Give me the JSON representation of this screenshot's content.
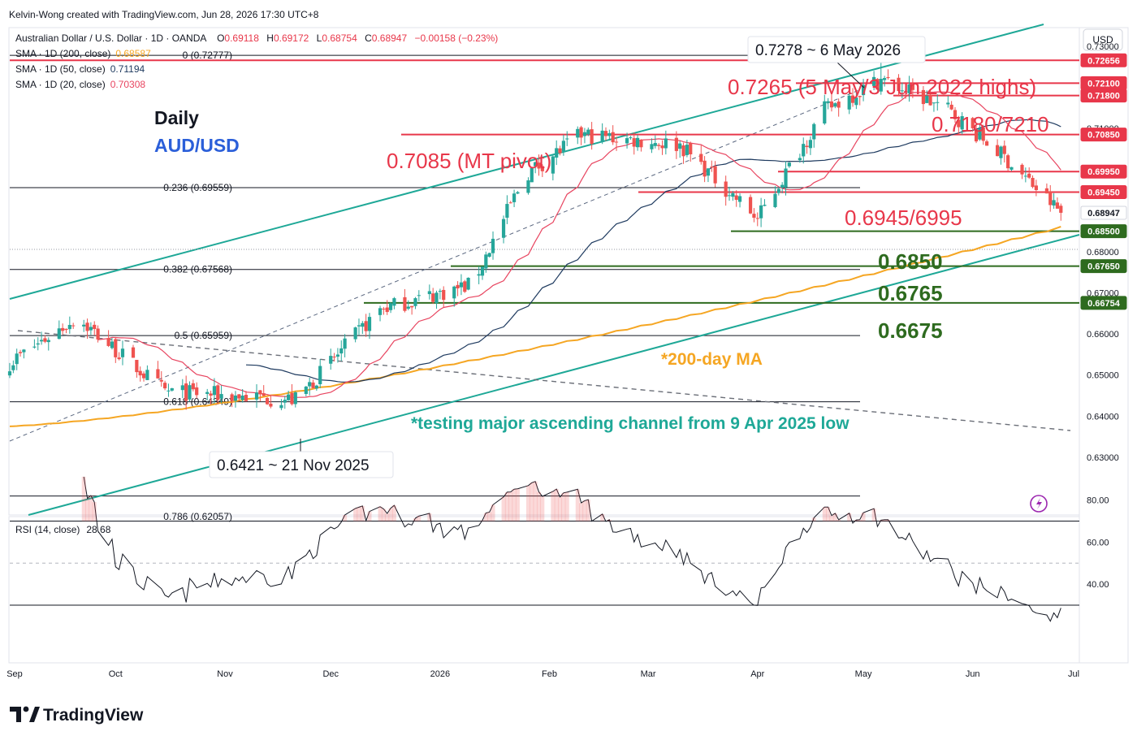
{
  "attribution": "Kelvin-Wong created with TradingView.com, Jun 28, 2026 17:30 UTC+8",
  "currency_button": "USD",
  "legend": {
    "symbol": "Australian Dollar / U.S. Dollar · 1D · OANDA",
    "ohlc": [
      {
        "key": "O",
        "value": "0.69118"
      },
      {
        "key": "H",
        "value": "0.69172"
      },
      {
        "key": "L",
        "value": "0.68754"
      },
      {
        "key": "C",
        "value": "0.68947"
      }
    ],
    "change": "−0.00158 (−0.23%)",
    "sma": [
      {
        "label": "SMA · 1D (200, close)",
        "value": "0.68587",
        "color": "#f5a623"
      },
      {
        "label": "SMA · 1D (50, close)",
        "value": "0.71194",
        "color": "#1e3a5f"
      },
      {
        "label": "SMA · 1D (20, close)",
        "value": "0.70308",
        "color": "#e84560"
      }
    ]
  },
  "rsi_legend": {
    "label": "RSI (14, close)",
    "value": "28.68"
  },
  "titles": {
    "period": "Daily",
    "pair": "AUD/USD"
  },
  "annotations": {
    "high_callout": "0.7278 ~ 6 May 2026",
    "low_callout": "0.6421 ~ 21 Nov 2025",
    "r1": "0.7265 (5 May/3 Jun 2022 highs)",
    "r2": "0.7180/7210",
    "pivot": "0.7085 (MT pivot)",
    "r3": "0.6945/6995",
    "s1": "0.6850",
    "s2": "0.6765",
    "s3": "0.6675",
    "ma_note": "*200-day MA",
    "channel_note": "*testing major ascending channel from 9 Apr 2025 low"
  },
  "fib_labels": [
    "0 (0.72777)",
    "0.236 (0.69559)",
    "0.382 (0.67568)",
    "0.5 (0.65959)",
    "0.618 (0.64349)",
    "0.786 (0.62057)"
  ],
  "price_axis_labels": [
    "0.73000",
    "0.71000",
    "0.68000",
    "0.67000",
    "0.66000",
    "0.65000",
    "0.64000",
    "0.63000"
  ],
  "price_tags": [
    {
      "text": "0.72656",
      "style": "red"
    },
    {
      "text": "0.72100",
      "style": "red"
    },
    {
      "text": "0.71800",
      "style": "red"
    },
    {
      "text": "0.70850",
      "style": "red"
    },
    {
      "text": "0.69950",
      "style": "red"
    },
    {
      "text": "0.69450",
      "style": "red"
    },
    {
      "text": "0.68947",
      "style": "last"
    },
    {
      "text": "0.68500",
      "style": "green"
    },
    {
      "text": "0.67650",
      "style": "green"
    },
    {
      "text": "0.66754",
      "style": "green"
    }
  ],
  "rsi_axis_labels": [
    "80.00",
    "60.00",
    "40.00"
  ],
  "time_axis_labels": [
    "Sep",
    "Oct",
    "Nov",
    "Dec",
    "2026",
    "Feb",
    "Mar",
    "Apr",
    "May",
    "Jun",
    "Jul"
  ],
  "colors": {
    "up": "#26a69a",
    "down": "#ef5350",
    "resistance": "#e8374a",
    "support": "#2e6b1f",
    "channel": "#1ea897",
    "sma200": "#f5a623",
    "sma50": "#1e3a5f",
    "sma20": "#e84560"
  },
  "brand": "TradingView",
  "chart_data": {
    "type": "candlestick",
    "symbol": "AUD/USD",
    "timeframe": "1D",
    "x_range": [
      "2025-09-01",
      "2026-07-01"
    ],
    "y_range": [
      0.625,
      0.734
    ],
    "anchors": [
      {
        "date": "2025-09-01",
        "close": 0.653
      },
      {
        "date": "2025-09-20",
        "close": 0.664
      },
      {
        "date": "2025-10-15",
        "close": 0.646
      },
      {
        "date": "2025-11-21",
        "close": 0.644,
        "low": 0.6421
      },
      {
        "date": "2025-12-15",
        "close": 0.666
      },
      {
        "date": "2026-01-10",
        "close": 0.672
      },
      {
        "date": "2026-01-25",
        "close": 0.6985
      },
      {
        "date": "2026-02-10",
        "close": 0.7085
      },
      {
        "date": "2026-03-10",
        "close": 0.706
      },
      {
        "date": "2026-04-01",
        "close": 0.688
      },
      {
        "date": "2026-04-20",
        "close": 0.7145
      },
      {
        "date": "2026-05-06",
        "close": 0.722,
        "high": 0.7278
      },
      {
        "date": "2026-05-25",
        "close": 0.7145
      },
      {
        "date": "2026-06-10",
        "close": 0.703
      },
      {
        "date": "2026-06-26",
        "close": 0.68947
      }
    ],
    "last_bar": {
      "open": 0.69118,
      "high": 0.69172,
      "low": 0.68754,
      "close": 0.68947
    },
    "levels": {
      "resistance": [
        0.7265,
        0.721,
        0.718,
        0.7085,
        0.6995,
        0.6945
      ],
      "support": [
        0.685,
        0.6765,
        0.6675
      ]
    },
    "sma_last": {
      "sma200": 0.68587,
      "sma50": 0.71194,
      "sma20": 0.70308
    },
    "rsi": {
      "period": 14,
      "last": 28.68,
      "bands": [
        70,
        30
      ],
      "y_range": [
        20,
        90
      ]
    }
  }
}
